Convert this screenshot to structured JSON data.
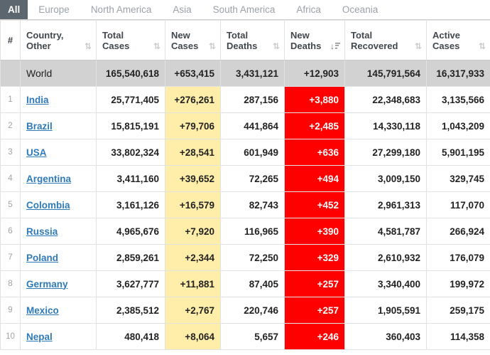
{
  "tabs": {
    "items": [
      {
        "label": "All",
        "active": true
      },
      {
        "label": "Europe",
        "active": false
      },
      {
        "label": "North America",
        "active": false
      },
      {
        "label": "Asia",
        "active": false
      },
      {
        "label": "South America",
        "active": false
      },
      {
        "label": "Africa",
        "active": false
      },
      {
        "label": "Oceania",
        "active": false
      }
    ]
  },
  "icons": {
    "sort_both": "⇅",
    "sort_desc_arrow": "↓"
  },
  "colors": {
    "active_tab_bg": "#5b666e",
    "new_cases_bg": "#ffeeaa",
    "new_deaths_bg": "#ff0000",
    "world_row_bg": "#d2d2d2",
    "link": "#2f7ab9"
  },
  "table": {
    "columns": [
      {
        "key": "rank",
        "label": "#",
        "sortable": false
      },
      {
        "key": "country",
        "label": "Country, Other",
        "sortable": true,
        "sorted": null
      },
      {
        "key": "total_cases",
        "label": "Total Cases",
        "sortable": true,
        "sorted": null
      },
      {
        "key": "new_cases",
        "label": "New Cases",
        "sortable": true,
        "sorted": null
      },
      {
        "key": "total_deaths",
        "label": "Total Deaths",
        "sortable": true,
        "sorted": null
      },
      {
        "key": "new_deaths",
        "label": "New Deaths",
        "sortable": true,
        "sorted": "desc"
      },
      {
        "key": "total_recovered",
        "label": "Total Recovered",
        "sortable": true,
        "sorted": null
      },
      {
        "key": "active_cases",
        "label": "Active Cases",
        "sortable": true,
        "sorted": null
      }
    ],
    "world_row": {
      "rank": "",
      "country": "World",
      "total_cases": "165,540,618",
      "new_cases": "+653,415",
      "total_deaths": "3,431,121",
      "new_deaths": "+12,903",
      "total_recovered": "145,791,564",
      "active_cases": "16,317,933"
    },
    "rows": [
      {
        "rank": "1",
        "country": "India",
        "total_cases": "25,771,405",
        "new_cases": "+276,261",
        "total_deaths": "287,156",
        "new_deaths": "+3,880",
        "total_recovered": "22,348,683",
        "active_cases": "3,135,566"
      },
      {
        "rank": "2",
        "country": "Brazil",
        "total_cases": "15,815,191",
        "new_cases": "+79,706",
        "total_deaths": "441,864",
        "new_deaths": "+2,485",
        "total_recovered": "14,330,118",
        "active_cases": "1,043,209"
      },
      {
        "rank": "3",
        "country": "USA",
        "total_cases": "33,802,324",
        "new_cases": "+28,541",
        "total_deaths": "601,949",
        "new_deaths": "+636",
        "total_recovered": "27,299,180",
        "active_cases": "5,901,195"
      },
      {
        "rank": "4",
        "country": "Argentina",
        "total_cases": "3,411,160",
        "new_cases": "+39,652",
        "total_deaths": "72,265",
        "new_deaths": "+494",
        "total_recovered": "3,009,150",
        "active_cases": "329,745"
      },
      {
        "rank": "5",
        "country": "Colombia",
        "total_cases": "3,161,126",
        "new_cases": "+16,579",
        "total_deaths": "82,743",
        "new_deaths": "+452",
        "total_recovered": "2,961,313",
        "active_cases": "117,070"
      },
      {
        "rank": "6",
        "country": "Russia",
        "total_cases": "4,965,676",
        "new_cases": "+7,920",
        "total_deaths": "116,965",
        "new_deaths": "+390",
        "total_recovered": "4,581,787",
        "active_cases": "266,924"
      },
      {
        "rank": "7",
        "country": "Poland",
        "total_cases": "2,859,261",
        "new_cases": "+2,344",
        "total_deaths": "72,250",
        "new_deaths": "+329",
        "total_recovered": "2,610,932",
        "active_cases": "176,079"
      },
      {
        "rank": "8",
        "country": "Germany",
        "total_cases": "3,627,777",
        "new_cases": "+11,881",
        "total_deaths": "87,405",
        "new_deaths": "+257",
        "total_recovered": "3,340,400",
        "active_cases": "199,972"
      },
      {
        "rank": "9",
        "country": "Mexico",
        "total_cases": "2,385,512",
        "new_cases": "+2,767",
        "total_deaths": "220,746",
        "new_deaths": "+257",
        "total_recovered": "1,905,591",
        "active_cases": "259,175"
      },
      {
        "rank": "10",
        "country": "Nepal",
        "total_cases": "480,418",
        "new_cases": "+8,064",
        "total_deaths": "5,657",
        "new_deaths": "+246",
        "total_recovered": "360,403",
        "active_cases": "114,358"
      }
    ]
  }
}
